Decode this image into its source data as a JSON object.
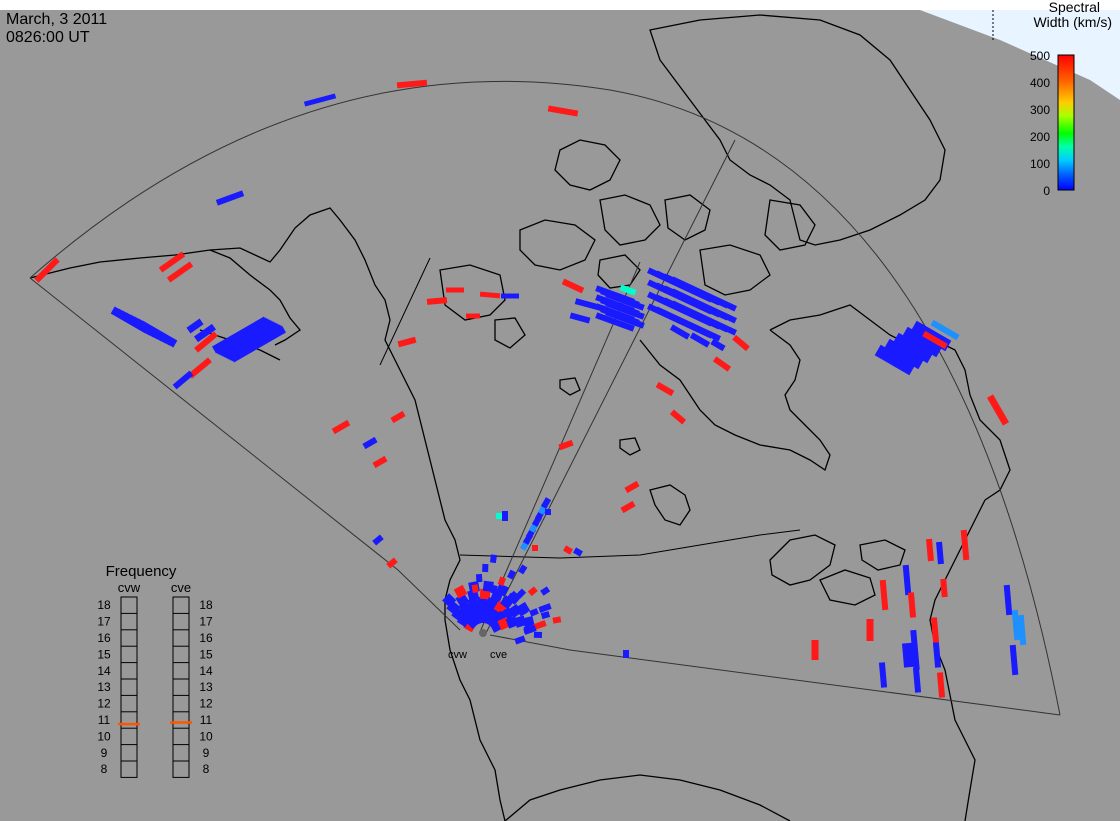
{
  "header": {
    "date": "March, 3 2011",
    "time": "0826:00 UT"
  },
  "colorbar": {
    "title_line1": "Spectral",
    "title_line2": "Width (km/s)",
    "ticks": [
      "500",
      "400",
      "300",
      "200",
      "100",
      "0"
    ],
    "stops": [
      "#0000ff",
      "#00aaff",
      "#00ffcc",
      "#00ff00",
      "#ccff00",
      "#ffcc00",
      "#ff6600",
      "#ff0000"
    ]
  },
  "frequency_panel": {
    "title": "Frequency",
    "radars": [
      "cvw",
      "cve"
    ],
    "ticks": [
      "18",
      "17",
      "16",
      "15",
      "14",
      "13",
      "12",
      "11",
      "10",
      "9",
      "8"
    ],
    "cvw_value": 10.75,
    "cve_value": 10.85,
    "marker_color": "#ff5500"
  },
  "radar_sites": {
    "cvw_label": "cvw",
    "cve_label": "cve"
  },
  "colors": {
    "background": "#999999",
    "low_width": "#1a1aff",
    "high_width": "#ff1a1a",
    "mid_width": "#00ffcc",
    "light_blue": "#1e90ff"
  }
}
